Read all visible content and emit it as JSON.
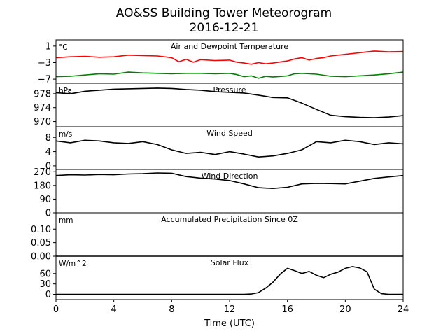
{
  "figure": {
    "title_line1": "AO&SS Building Tower Meteorogram",
    "title_line2": "2016-12-21"
  },
  "chart_data": {
    "type": "line",
    "xlabel": "Time (UTC)",
    "xlim": [
      0,
      24
    ],
    "xticks": [
      0,
      4,
      8,
      12,
      16,
      20,
      24
    ],
    "panels": [
      {
        "id": "temperature",
        "title": "Air and Dewpoint Temperature",
        "unit": "°C",
        "ylim": [
          -8,
          2.5
        ],
        "yticks": [
          {
            "v": 1,
            "label": "1"
          },
          {
            "v": -3,
            "label": "−3"
          },
          {
            "v": -7,
            "label": "−7"
          }
        ],
        "series": [
          {
            "color": "#ff0000",
            "x": [
              0,
              1,
              2,
              3,
              4,
              5,
              6,
              7,
              7.5,
              8,
              8.5,
              9,
              9.5,
              10,
              11,
              12,
              12.5,
              13,
              13.5,
              14,
              14.5,
              15,
              16,
              16.5,
              17,
              17.5,
              18,
              18.5,
              19,
              20,
              21,
              22,
              23,
              24
            ],
            "y": [
              -1.8,
              -1.6,
              -1.5,
              -1.7,
              -1.6,
              -1.2,
              -1.3,
              -1.4,
              -1.6,
              -1.8,
              -2.8,
              -2.2,
              -2.9,
              -2.3,
              -2.5,
              -2.4,
              -2.9,
              -3.1,
              -3.4,
              -3.0,
              -3.3,
              -3.1,
              -2.6,
              -2.1,
              -1.8,
              -2.4,
              -2.0,
              -1.8,
              -1.4,
              -1.0,
              -0.6,
              -0.2,
              -0.4,
              -0.3
            ]
          },
          {
            "color": "#008000",
            "x": [
              0,
              1,
              2,
              3,
              4,
              5,
              6,
              7,
              8,
              9,
              10,
              11,
              12,
              12.5,
              13,
              13.5,
              14,
              14.5,
              15,
              16,
              16.5,
              17,
              18,
              19,
              20,
              21,
              22,
              23,
              24
            ],
            "y": [
              -6.4,
              -6.3,
              -6.0,
              -5.7,
              -5.8,
              -5.3,
              -5.5,
              -5.6,
              -5.7,
              -5.6,
              -5.6,
              -5.7,
              -5.6,
              -5.9,
              -6.4,
              -6.2,
              -6.8,
              -6.3,
              -6.5,
              -6.2,
              -5.7,
              -5.6,
              -5.8,
              -6.3,
              -6.4,
              -6.2,
              -6.0,
              -5.7,
              -5.3
            ]
          }
        ]
      },
      {
        "id": "pressure",
        "title": "Pressure",
        "unit": "hPa",
        "ylim": [
          968.5,
          981
        ],
        "yticks": [
          {
            "v": 978,
            "label": "978"
          },
          {
            "v": 974,
            "label": "974"
          },
          {
            "v": 970,
            "label": "970"
          }
        ],
        "series": [
          {
            "color": "#000000",
            "x": [
              0,
              1,
              2,
              3,
              4,
              5,
              6,
              7,
              8,
              9,
              10,
              11,
              12,
              13,
              14,
              15,
              16,
              17,
              18,
              19,
              20,
              21,
              22,
              23,
              24
            ],
            "y": [
              978.3,
              978.0,
              978.7,
              979.0,
              979.3,
              979.4,
              979.5,
              979.6,
              979.5,
              979.2,
              979.0,
              978.6,
              978.4,
              978.2,
              977.6,
              976.9,
              976.8,
              975.3,
              973.5,
              971.8,
              971.4,
              971.2,
              971.1,
              971.3,
              971.7
            ]
          }
        ]
      },
      {
        "id": "wind_speed",
        "title": "Wind Speed",
        "unit": "m/s",
        "ylim": [
          -1,
          11
        ],
        "yticks": [
          {
            "v": 8,
            "label": "8"
          },
          {
            "v": 4,
            "label": "4"
          },
          {
            "v": 0,
            "label": "0"
          }
        ],
        "series": [
          {
            "color": "#000000",
            "x": [
              0,
              1,
              2,
              3,
              4,
              5,
              6,
              7,
              8,
              9,
              10,
              11,
              12,
              13,
              14,
              15,
              16,
              17,
              18,
              19,
              20,
              21,
              22,
              23,
              24
            ],
            "y": [
              7.0,
              6.5,
              7.2,
              7.0,
              6.5,
              6.3,
              6.8,
              6.0,
              4.5,
              3.5,
              3.8,
              3.2,
              4.0,
              3.3,
              2.5,
              2.8,
              3.5,
              4.5,
              6.8,
              6.5,
              7.2,
              6.8,
              6.0,
              6.5,
              6.2
            ]
          }
        ]
      },
      {
        "id": "wind_direction",
        "title": "Wind Direction",
        "unit": "",
        "ylim": [
          0,
          285
        ],
        "yticks": [
          {
            "v": 270,
            "label": "270"
          },
          {
            "v": 180,
            "label": "180"
          },
          {
            "v": 90,
            "label": "90"
          },
          {
            "v": 0,
            "label": "0"
          }
        ],
        "series": [
          {
            "color": "#000000",
            "x": [
              0,
              1,
              2,
              3,
              4,
              5,
              6,
              7,
              8,
              9,
              10,
              11,
              12,
              13,
              14,
              15,
              16,
              17,
              18,
              19,
              20,
              21,
              22,
              23,
              24
            ],
            "y": [
              245,
              250,
              248,
              252,
              250,
              255,
              257,
              262,
              260,
              238,
              228,
              222,
              212,
              190,
              165,
              160,
              168,
              190,
              193,
              192,
              190,
              208,
              226,
              236,
              245
            ]
          }
        ]
      },
      {
        "id": "precipitation",
        "title": "Accumulated Precipitation Since 0Z",
        "unit": "mm",
        "ylim": [
          0,
          0.16
        ],
        "yticks": [
          {
            "v": 0.1,
            "label": "0.10"
          },
          {
            "v": 0.05,
            "label": "0.05"
          },
          {
            "v": 0.0,
            "label": "0.00"
          }
        ],
        "series": [
          {
            "color": "#000000",
            "x": [
              0,
              24
            ],
            "y": [
              0,
              0
            ]
          }
        ]
      },
      {
        "id": "solar_flux",
        "title": "Solar Flux",
        "unit": "W/m^2",
        "ylim": [
          -15,
          110
        ],
        "yticks": [
          {
            "v": 60,
            "label": "60"
          },
          {
            "v": 30,
            "label": "30"
          },
          {
            "v": 0,
            "label": "0"
          }
        ],
        "series": [
          {
            "color": "#000000",
            "x": [
              0,
              13,
              13.5,
              14,
              14.5,
              15,
              15.5,
              16,
              16.5,
              17,
              17.5,
              18,
              18.5,
              19,
              19.5,
              20,
              20.5,
              21,
              21.5,
              22,
              22.5,
              23,
              24
            ],
            "y": [
              0,
              0,
              1,
              5,
              18,
              35,
              58,
              75,
              68,
              60,
              66,
              55,
              48,
              58,
              64,
              75,
              80,
              76,
              65,
              15,
              2,
              0,
              0
            ]
          }
        ]
      }
    ]
  }
}
